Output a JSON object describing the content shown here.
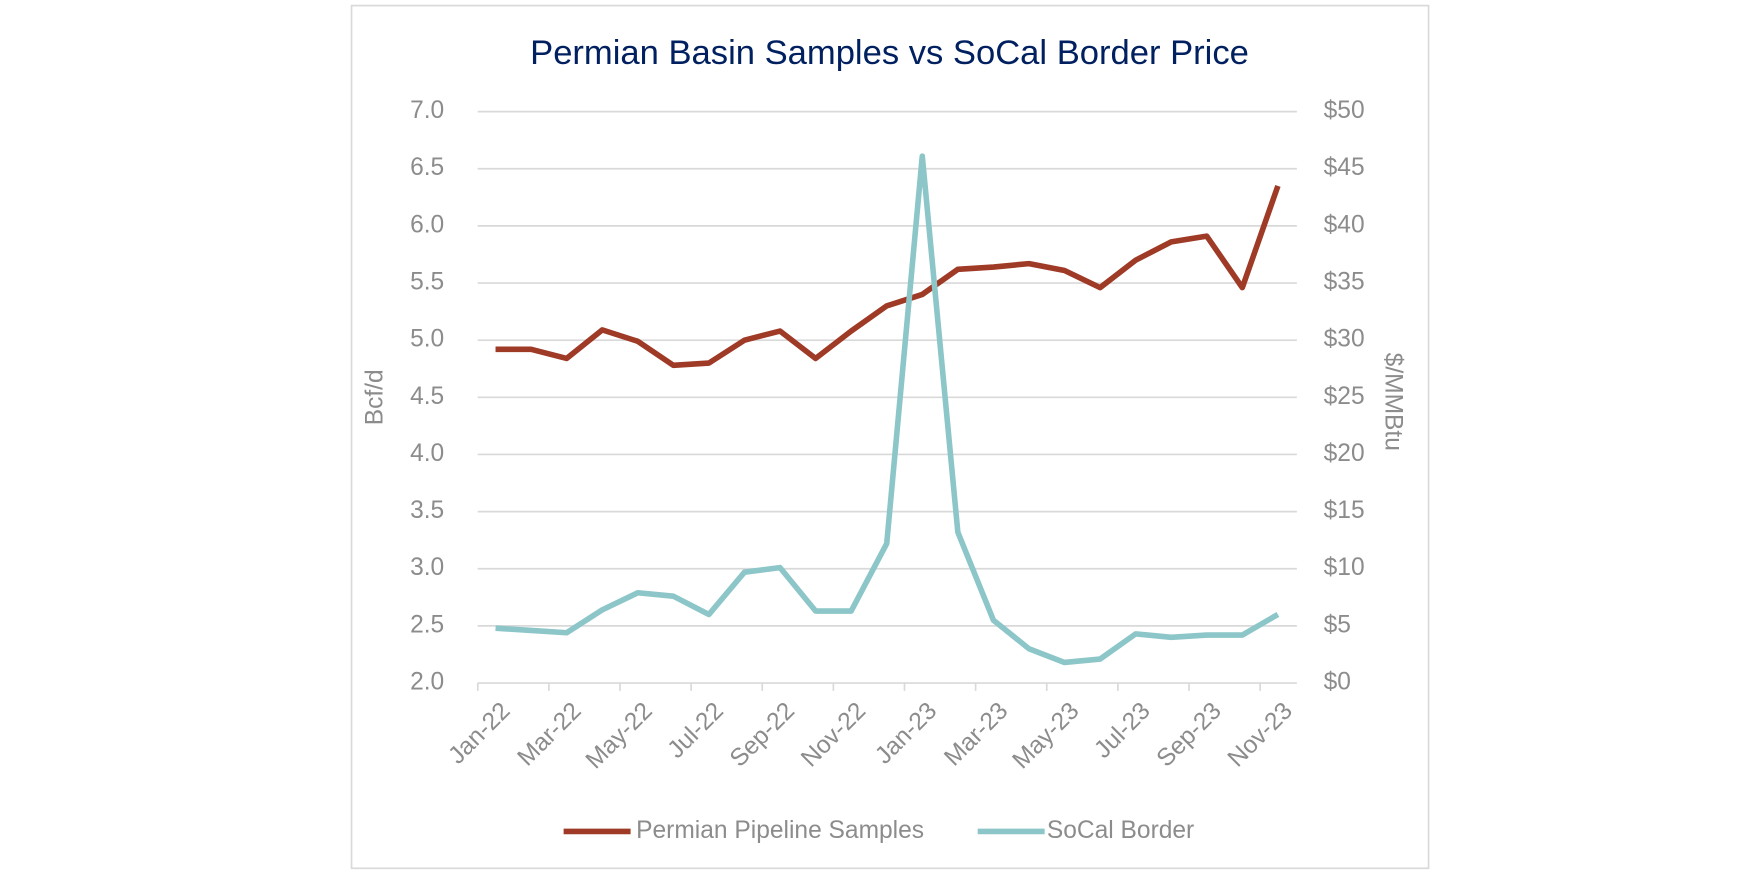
{
  "chart_data": {
    "type": "line",
    "title": "Permian Basin Samples vs SoCal Border Price",
    "y_label": "Bcf/d",
    "y2_label": "$/MMBtu",
    "categories": [
      "Jan-22",
      null,
      "Mar-22",
      null,
      "May-22",
      null,
      "Jul-22",
      null,
      "Sep-22",
      null,
      "Nov-22",
      null,
      "Jan-23",
      null,
      "Mar-23",
      null,
      "May-23",
      null,
      "Jul-23",
      null,
      "Sep-23",
      null,
      "Nov-23"
    ],
    "series": [
      {
        "name": "Permian Pipeline Samples",
        "color": "#9e3a26",
        "axis": "y",
        "values": [
          4.92,
          4.92,
          4.84,
          5.09,
          4.99,
          4.78,
          4.8,
          5.0,
          5.08,
          4.84,
          5.08,
          5.3,
          5.4,
          5.62,
          5.64,
          5.67,
          5.61,
          5.46,
          5.7,
          5.86,
          5.91,
          5.46,
          6.35
        ]
      },
      {
        "name": "SoCal Border",
        "color": "#8cc6c8",
        "axis": "y2",
        "values": [
          4.8,
          4.6,
          4.4,
          6.4,
          7.9,
          7.6,
          6.0,
          9.7,
          10.1,
          6.3,
          6.3,
          12.2,
          46.1,
          13.2,
          5.5,
          3.0,
          1.8,
          2.1,
          4.3,
          4.0,
          4.2,
          4.2,
          6.0
        ]
      }
    ],
    "ylim": [
      2,
      7
    ],
    "yticks": [
      {
        "value": 2,
        "label": "2.0"
      },
      {
        "value": 2.5,
        "label": "2.5"
      },
      {
        "value": 3,
        "label": "3.0"
      },
      {
        "value": 3.5,
        "label": "3.5"
      },
      {
        "value": 4,
        "label": "4.0"
      },
      {
        "value": 4.5,
        "label": "4.5"
      },
      {
        "value": 5,
        "label": "5.0"
      },
      {
        "value": 5.5,
        "label": "5.5"
      },
      {
        "value": 6,
        "label": "6.0"
      },
      {
        "value": 6.5,
        "label": "6.5"
      },
      {
        "value": 7,
        "label": "7.0"
      }
    ],
    "y2lim": [
      0,
      50
    ],
    "y2ticks": [
      {
        "value": 0,
        "label": "$0"
      },
      {
        "value": 5,
        "label": "$5"
      },
      {
        "value": 10,
        "label": "$10"
      },
      {
        "value": 15,
        "label": "$15"
      },
      {
        "value": 20,
        "label": "$20"
      },
      {
        "value": 25,
        "label": "$25"
      },
      {
        "value": 30,
        "label": "$30"
      },
      {
        "value": 35,
        "label": "$35"
      },
      {
        "value": 40,
        "label": "$40"
      },
      {
        "value": 45,
        "label": "$45"
      },
      {
        "value": 50,
        "label": "$50"
      }
    ],
    "grid": true,
    "legend": "bottom"
  }
}
